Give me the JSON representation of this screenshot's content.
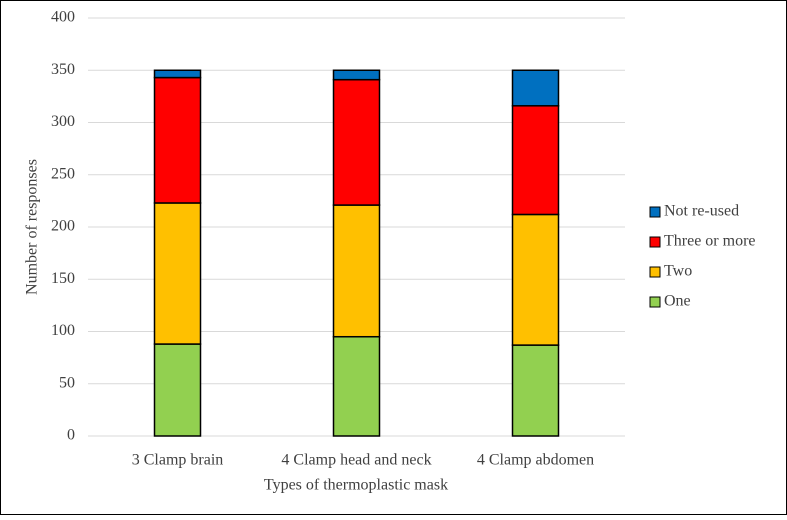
{
  "chart_data": {
    "type": "stacked_bar",
    "x_label": "Types of thermoplastic mask",
    "y_label": "Number of responses",
    "categories": [
      "3 Clamp brain",
      "4 Clamp head and neck",
      "4 Clamp abdomen"
    ],
    "series": [
      {
        "name": "One",
        "color": "#92d050",
        "values": [
          88,
          95,
          87
        ]
      },
      {
        "name": "Two",
        "color": "#ffc000",
        "values": [
          135,
          126,
          125
        ]
      },
      {
        "name": "Three or more",
        "color": "#ff0000",
        "values": [
          120,
          120,
          104
        ]
      },
      {
        "name": "Not re-used",
        "color": "#0070c0",
        "values": [
          7,
          9,
          34
        ]
      }
    ],
    "ylim": [
      0,
      400
    ],
    "yticks": [
      0,
      50,
      100,
      150,
      200,
      250,
      300,
      350,
      400
    ],
    "grid": true,
    "legend": "right"
  }
}
